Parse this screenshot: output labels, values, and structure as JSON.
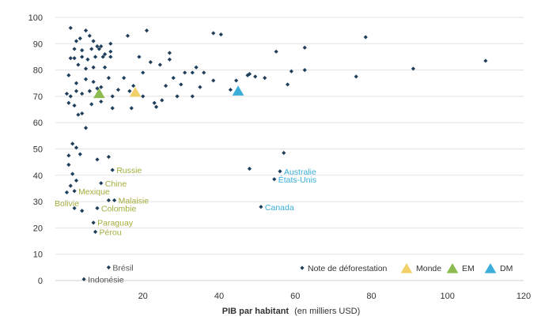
{
  "chart_data": {
    "type": "scatter",
    "xlabel_bold": "PIB par habitant",
    "xlabel_rest": "(en milliers USD)",
    "xlim": [
      -3,
      120
    ],
    "ylim": [
      0,
      100
    ],
    "xticks": [
      20,
      40,
      60,
      80,
      100,
      120
    ],
    "yticks": [
      0,
      10,
      20,
      30,
      40,
      50,
      60,
      70,
      80,
      90,
      100
    ],
    "grid": true,
    "legend_position": "bottom-right",
    "colors": {
      "points": "#1f3f5b",
      "world": "#f2d16b",
      "em": "#8dbb4f",
      "dm": "#3aaed8",
      "em_label": "#a3ad3c",
      "dm_label": "#3aaed8",
      "grid": "#e3e3e3"
    },
    "series": [
      {
        "name": "Note de déforestation",
        "marker": "diamond",
        "points": [
          [
            1.0,
            96
          ],
          [
            3.5,
            92
          ],
          [
            2.5,
            91
          ],
          [
            5.0,
            95
          ],
          [
            6.0,
            93
          ],
          [
            7.0,
            91
          ],
          [
            8.0,
            89
          ],
          [
            9.0,
            89
          ],
          [
            11.5,
            90
          ],
          [
            16.0,
            93
          ],
          [
            21.0,
            95
          ],
          [
            38.5,
            94
          ],
          [
            40.5,
            93.5
          ],
          [
            78.5,
            92.5
          ],
          [
            2.0,
            88
          ],
          [
            4.0,
            87.5
          ],
          [
            6.5,
            88
          ],
          [
            8.5,
            88
          ],
          [
            10.0,
            86
          ],
          [
            11.5,
            87
          ],
          [
            27.0,
            86.5
          ],
          [
            55.0,
            87
          ],
          [
            62.5,
            88.5
          ],
          [
            110.0,
            83.5
          ],
          [
            1.0,
            84.5
          ],
          [
            2.0,
            84.5
          ],
          [
            4.0,
            85
          ],
          [
            5.5,
            84
          ],
          [
            7.5,
            85
          ],
          [
            9.5,
            85
          ],
          [
            11.5,
            85
          ],
          [
            19.0,
            85
          ],
          [
            22.0,
            83
          ],
          [
            24.5,
            82
          ],
          [
            27.0,
            84
          ],
          [
            34.0,
            81
          ],
          [
            36.0,
            79
          ],
          [
            47.5,
            78
          ],
          [
            49.5,
            77.5
          ],
          [
            52.0,
            77
          ],
          [
            59.0,
            79.5
          ],
          [
            76.0,
            77.5
          ],
          [
            91.0,
            80.5
          ],
          [
            3.0,
            82
          ],
          [
            5.0,
            80.5
          ],
          [
            7.0,
            81
          ],
          [
            10.0,
            81
          ],
          [
            15.0,
            77
          ],
          [
            20.0,
            79
          ],
          [
            28.0,
            77
          ],
          [
            31.0,
            79
          ],
          [
            33.0,
            79
          ],
          [
            38.5,
            76
          ],
          [
            44.5,
            76
          ],
          [
            48.0,
            78.5
          ],
          [
            58.0,
            74.5
          ],
          [
            62.5,
            80
          ],
          [
            0.5,
            78
          ],
          [
            2.5,
            75
          ],
          [
            5.0,
            76.5
          ],
          [
            7.0,
            75.5
          ],
          [
            9.0,
            73.5
          ],
          [
            11.0,
            77
          ],
          [
            13.5,
            72.5
          ],
          [
            17.5,
            74
          ],
          [
            20.0,
            70
          ],
          [
            26.0,
            74
          ],
          [
            30.0,
            74.5
          ],
          [
            33.0,
            70
          ],
          [
            35.0,
            73.5
          ],
          [
            0.0,
            71
          ],
          [
            1.0,
            70
          ],
          [
            2.5,
            72
          ],
          [
            4.0,
            71
          ],
          [
            6.0,
            72
          ],
          [
            8.0,
            73
          ],
          [
            12.0,
            70
          ],
          [
            16.5,
            72
          ],
          [
            23.0,
            67.5
          ],
          [
            25.0,
            68.5
          ],
          [
            29.0,
            70
          ],
          [
            43.0,
            72.5
          ],
          [
            0.5,
            67.5
          ],
          [
            2.0,
            66.5
          ],
          [
            3.0,
            63
          ],
          [
            4.0,
            63.5
          ],
          [
            6.5,
            67
          ],
          [
            9.0,
            68
          ],
          [
            12.0,
            65.5
          ],
          [
            17.0,
            65.5
          ],
          [
            23.5,
            66
          ],
          [
            5.0,
            58
          ],
          [
            1.5,
            52
          ],
          [
            2.5,
            50.5
          ],
          [
            3.5,
            48
          ],
          [
            0.5,
            47.5
          ],
          [
            8.0,
            46
          ],
          [
            11.0,
            47
          ],
          [
            57.0,
            48.5
          ],
          [
            48.0,
            42.5
          ],
          [
            0.5,
            44
          ],
          [
            1.5,
            40.5
          ],
          [
            2.5,
            38
          ],
          [
            1.0,
            36
          ],
          [
            2.0,
            34
          ],
          [
            0.0,
            33.5
          ],
          [
            2.0,
            27.5
          ],
          [
            4.0,
            26.5
          ],
          [
            7.0,
            22
          ],
          [
            12.0,
            42
          ],
          [
            9.0,
            37
          ],
          [
            11.0,
            30.5
          ],
          [
            12.5,
            30.5
          ],
          [
            8.0,
            27.5
          ],
          [
            7.5,
            18.5
          ],
          [
            56.0,
            41.5
          ],
          [
            54.5,
            38.5
          ],
          [
            51.0,
            28
          ],
          [
            11.0,
            5
          ],
          [
            4.5,
            0.5
          ]
        ]
      },
      {
        "name": "Monde",
        "marker": "triangle",
        "points": [
          [
            18.0,
            71.5
          ]
        ]
      },
      {
        "name": "EM",
        "marker": "triangle",
        "points": [
          [
            8.5,
            71
          ]
        ]
      },
      {
        "name": "DM",
        "marker": "triangle",
        "points": [
          [
            45.0,
            72
          ]
        ]
      }
    ],
    "annotations": [
      {
        "text": "Russie",
        "x": 12.0,
        "y": 42,
        "group": "em",
        "anchor": "start"
      },
      {
        "text": "Chine",
        "x": 9.0,
        "y": 37,
        "group": "em",
        "anchor": "start"
      },
      {
        "text": "Mexique",
        "x": 2.0,
        "y": 34,
        "group": "em",
        "anchor": "start"
      },
      {
        "text": "Bolivie",
        "x": 2.0,
        "y": 29.5,
        "group": "em",
        "anchor": "middle-left"
      },
      {
        "text": "Malaisie",
        "x": 12.5,
        "y": 30.5,
        "group": "em",
        "anchor": "start"
      },
      {
        "text": "Colombie",
        "x": 8.0,
        "y": 27.5,
        "group": "em",
        "anchor": "start"
      },
      {
        "text": "Paraguay",
        "x": 7.0,
        "y": 22,
        "group": "em",
        "anchor": "start"
      },
      {
        "text": "Pérou",
        "x": 7.5,
        "y": 18.5,
        "group": "em",
        "anchor": "start"
      },
      {
        "text": "Brésil",
        "x": 11.0,
        "y": 5,
        "group": "point",
        "anchor": "start"
      },
      {
        "text": "Indonésie",
        "x": 4.5,
        "y": 0.5,
        "group": "point",
        "anchor": "start"
      },
      {
        "text": "Australie",
        "x": 56.0,
        "y": 41.5,
        "group": "dm",
        "anchor": "start"
      },
      {
        "text": "États-Unis",
        "x": 54.5,
        "y": 38.5,
        "group": "dm",
        "anchor": "start"
      },
      {
        "text": "Canada",
        "x": 51.0,
        "y": 28,
        "group": "dm",
        "anchor": "start"
      }
    ]
  }
}
